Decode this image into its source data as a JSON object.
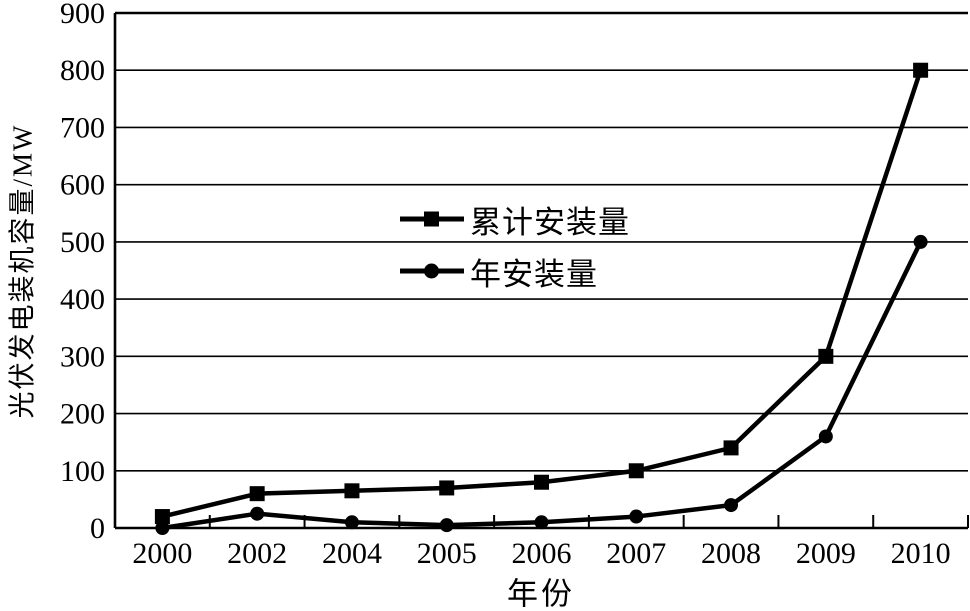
{
  "chart_data": {
    "type": "line",
    "title": "",
    "xlabel": "年份",
    "ylabel": "光伏发电装机容量/MW",
    "categories": [
      "2000",
      "2002",
      "2004",
      "2005",
      "2006",
      "2007",
      "2008",
      "2009",
      "2010"
    ],
    "series": [
      {
        "name": "累计安装量",
        "marker": "square",
        "values": [
          20,
          60,
          65,
          70,
          80,
          100,
          140,
          300,
          800
        ]
      },
      {
        "name": "年安装量",
        "marker": "circle",
        "values": [
          0,
          25,
          10,
          5,
          10,
          20,
          40,
          160,
          500
        ]
      }
    ],
    "ylim": [
      0,
      900
    ],
    "yticks": [
      0,
      100,
      200,
      300,
      400,
      500,
      600,
      700,
      800,
      900
    ],
    "grid": "horizontal",
    "legend_position": "inside-upper-middle-left",
    "colors": {
      "line": "#000000",
      "background": "#ffffff",
      "text": "#000000"
    }
  }
}
